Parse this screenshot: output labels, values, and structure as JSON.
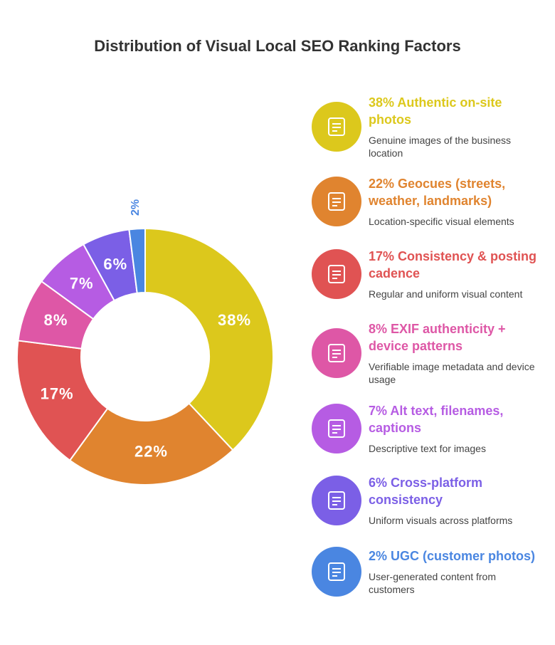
{
  "chart_data": {
    "type": "donut",
    "title": "Distribution of Visual Local SEO Ranking Factors",
    "categories": [
      "38% Authentic on-site photos",
      "22% Geocues (streets, weather, landmarks)",
      "17% Consistency & posting cadence",
      "8% EXIF authenticity + device patterns",
      "7% Alt text, filenames, captions",
      "6% Cross-platform consistency",
      "2% UGC (customer photos)"
    ],
    "descriptions": [
      "Genuine images of the business location",
      "Location-specific visual elements",
      "Regular and uniform visual content",
      "Verifiable image metadata and device usage",
      "Descriptive text for images",
      "Uniform visuals across platforms",
      "User-generated content from customers"
    ],
    "values": [
      38,
      22,
      17,
      8,
      7,
      6,
      2
    ],
    "value_labels": [
      "38%",
      "22%",
      "17%",
      "8%",
      "7%",
      "6%",
      "2%"
    ],
    "colors": [
      "#dcc81c",
      "#e0842f",
      "#e05353",
      "#de57a6",
      "#b65ce3",
      "#7b5fe6",
      "#4a86e1"
    ]
  }
}
